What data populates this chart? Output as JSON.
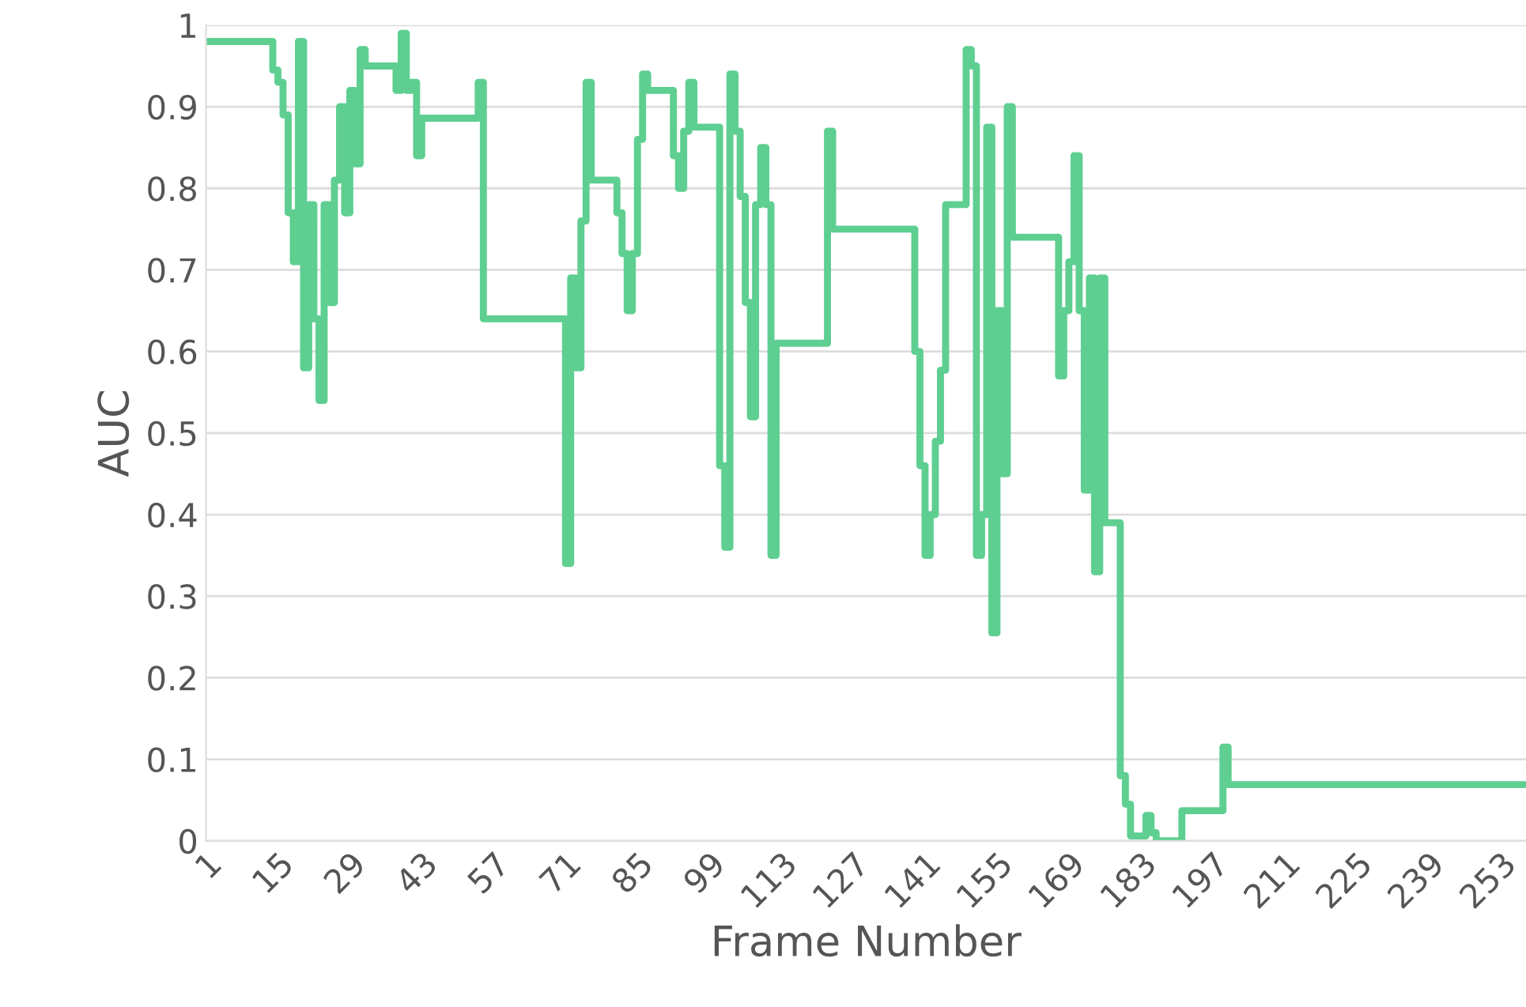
{
  "chart_data": {
    "type": "step",
    "xlabel": "Frame Number",
    "ylabel": "AUC",
    "x": [
      1,
      14,
      15,
      16,
      17,
      18,
      19,
      20,
      21,
      22,
      23,
      24,
      25,
      26,
      27,
      28,
      29,
      30,
      31,
      32,
      38,
      39,
      40,
      41,
      42,
      43,
      54,
      55,
      71,
      72,
      73,
      74,
      75,
      76,
      81,
      82,
      83,
      84,
      85,
      86,
      87,
      92,
      93,
      94,
      95,
      96,
      101,
      102,
      103,
      104,
      105,
      106,
      107,
      108,
      109,
      110,
      111,
      112,
      122,
      123,
      139,
      140,
      141,
      142,
      143,
      144,
      145,
      149,
      150,
      151,
      152,
      153,
      154,
      155,
      156,
      157,
      158,
      167,
      168,
      169,
      170,
      171,
      172,
      173,
      174,
      175,
      176,
      179,
      180,
      181,
      184,
      185,
      186,
      191,
      199,
      200,
      258
    ],
    "series": [
      {
        "color": "#5ecf91",
        "values": [
          0.98,
          0.945,
          0.93,
          0.89,
          0.77,
          0.71,
          0.98,
          0.58,
          0.78,
          0.64,
          0.54,
          0.78,
          0.66,
          0.81,
          0.9,
          0.77,
          0.92,
          0.83,
          0.97,
          0.95,
          0.92,
          0.99,
          0.92,
          0.93,
          0.84,
          0.886,
          0.93,
          0.64,
          0.34,
          0.69,
          0.58,
          0.76,
          0.93,
          0.81,
          0.77,
          0.72,
          0.65,
          0.72,
          0.86,
          0.94,
          0.92,
          0.84,
          0.8,
          0.87,
          0.93,
          0.875,
          0.46,
          0.36,
          0.94,
          0.87,
          0.79,
          0.66,
          0.52,
          0.78,
          0.85,
          0.78,
          0.35,
          0.61,
          0.87,
          0.75,
          0.6,
          0.46,
          0.35,
          0.4,
          0.49,
          0.577,
          0.78,
          0.97,
          0.95,
          0.35,
          0.4,
          0.875,
          0.255,
          0.65,
          0.45,
          0.9,
          0.74,
          0.57,
          0.65,
          0.71,
          0.84,
          0.65,
          0.43,
          0.69,
          0.33,
          0.69,
          0.39,
          0.08,
          0.045,
          0.006,
          0.031,
          0.01,
          0.0,
          0.037,
          0.115,
          0.069,
          0.069
        ]
      }
    ],
    "xlim": [
      1,
      258
    ],
    "xticks": [
      1,
      15,
      29,
      43,
      57,
      71,
      85,
      99,
      113,
      127,
      141,
      155,
      169,
      183,
      197,
      211,
      225,
      239,
      253
    ],
    "ylim": [
      0,
      1
    ],
    "yticks": [
      0,
      {
        "value": 0.1,
        "label": "0.1"
      },
      {
        "value": 0.2,
        "label": "0.2"
      },
      {
        "value": 0.3,
        "label": "0.3"
      },
      {
        "value": 0.4,
        "label": "0.4"
      },
      {
        "value": 0.5,
        "label": "0.5"
      },
      {
        "value": 0.6,
        "label": "0.6"
      },
      {
        "value": 0.7,
        "label": "0.7"
      },
      {
        "value": 0.8,
        "label": "0.8"
      },
      {
        "value": 0.9,
        "label": "0.9"
      },
      1
    ],
    "grid": "y",
    "line_style": "solid",
    "marker": "none"
  }
}
